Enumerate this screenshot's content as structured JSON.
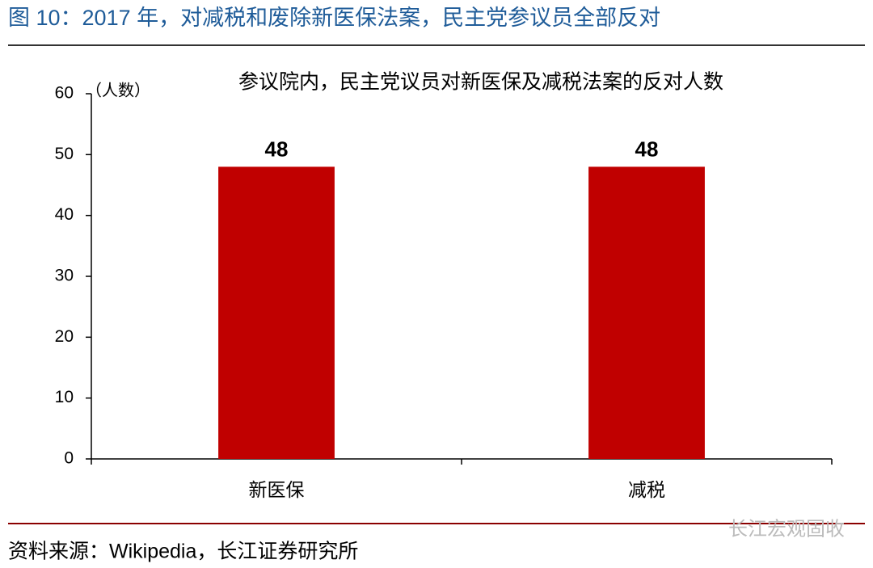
{
  "header": {
    "title": "图 10：2017 年，对减税和废除新医保法案，民主党参议员全部反对"
  },
  "chart_data": {
    "type": "bar",
    "title": "参议院内，民主党议员对新医保及减税法案的反对人数",
    "y_label": "（人数）",
    "categories": [
      "新医保",
      "减税"
    ],
    "values": [
      48,
      48
    ],
    "color": "#c00000",
    "ylim": [
      0,
      60
    ],
    "yticks": [
      0,
      10,
      20,
      30,
      40,
      50,
      60
    ],
    "grid": false
  },
  "footer": {
    "source": "资料来源：Wikipedia，长江证券研究所",
    "watermark": "长江宏观固收"
  }
}
